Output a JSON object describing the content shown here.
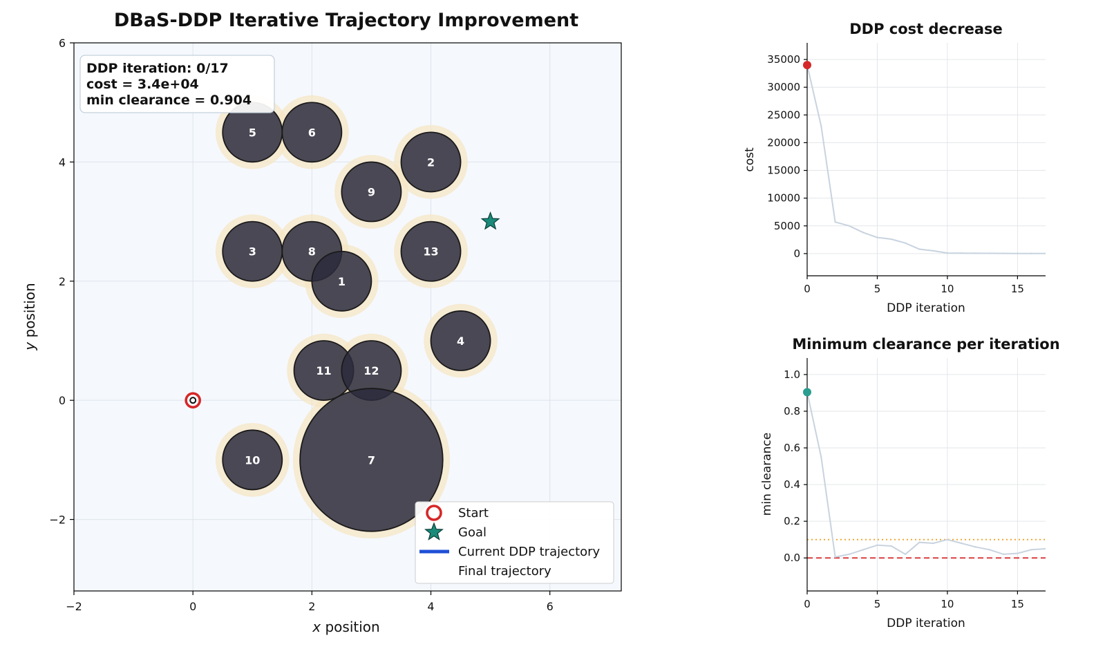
{
  "colors": {
    "obstacle_fill": "#2b2b3d",
    "obstacle_halo": "#f5e6c4",
    "plot_bg": "#f5f9fe",
    "start": "#d62728",
    "goal": "#1a8a7a",
    "trajectory": "#1f4fd6",
    "history_line": "#c8d3df",
    "cost_marker": "#d62728",
    "clearance_marker": "#2a9d8f",
    "safety_margin": "#f0a020",
    "zero_line": "#d62728"
  },
  "chart_data": [
    {
      "type": "scatter",
      "title": "DBaS-DDP Iterative Trajectory Improvement",
      "xlabel_italic": "x",
      "xlabel_rest": " position",
      "ylabel_italic": "y",
      "ylabel_rest": " position",
      "xlim": [
        -2,
        7.2
      ],
      "ylim": [
        -3.2,
        6
      ],
      "xticks": [
        -2,
        0,
        2,
        4,
        6
      ],
      "yticks": [
        -2,
        0,
        2,
        4,
        6
      ],
      "xtick_labels": [
        "−2",
        "0",
        "2",
        "4",
        "6"
      ],
      "ytick_labels": [
        "−2",
        "0",
        "2",
        "4",
        "6"
      ],
      "grid": true,
      "info_box": [
        "DDP iteration: 0/17",
        "cost = 3.4e+04",
        "min clearance = 0.904"
      ],
      "obstacles": [
        {
          "label": "5",
          "x": 1.0,
          "y": 4.5,
          "r": 0.5
        },
        {
          "label": "6",
          "x": 2.0,
          "y": 4.5,
          "r": 0.5
        },
        {
          "label": "2",
          "x": 4.0,
          "y": 4.0,
          "r": 0.5
        },
        {
          "label": "9",
          "x": 3.0,
          "y": 3.5,
          "r": 0.5
        },
        {
          "label": "3",
          "x": 1.0,
          "y": 2.5,
          "r": 0.5
        },
        {
          "label": "8",
          "x": 2.0,
          "y": 2.5,
          "r": 0.5
        },
        {
          "label": "13",
          "x": 4.0,
          "y": 2.5,
          "r": 0.5
        },
        {
          "label": "1",
          "x": 2.5,
          "y": 2.0,
          "r": 0.5
        },
        {
          "label": "4",
          "x": 4.5,
          "y": 1.0,
          "r": 0.5
        },
        {
          "label": "11",
          "x": 2.2,
          "y": 0.5,
          "r": 0.5
        },
        {
          "label": "12",
          "x": 3.0,
          "y": 0.5,
          "r": 0.5
        },
        {
          "label": "10",
          "x": 1.0,
          "y": -1.0,
          "r": 0.5
        },
        {
          "label": "7",
          "x": 3.0,
          "y": -1.0,
          "r": 1.2
        }
      ],
      "start": {
        "x": 0,
        "y": 0
      },
      "goal": {
        "x": 5,
        "y": 3
      },
      "legend": [
        "Start",
        "Goal",
        "Current DDP trajectory",
        "Final trajectory"
      ],
      "legend_position": "lower-right"
    },
    {
      "type": "line",
      "title": "DDP cost decrease",
      "xlabel": "DDP iteration",
      "ylabel": "cost",
      "xlim": [
        0,
        17
      ],
      "ylim": [
        -4000,
        38000
      ],
      "xticks": [
        0,
        5,
        10,
        15
      ],
      "yticks": [
        0,
        5000,
        10000,
        15000,
        20000,
        25000,
        30000,
        35000
      ],
      "grid": true,
      "x": [
        0,
        1,
        2,
        3,
        4,
        5,
        6,
        7,
        8,
        9,
        10,
        11,
        12,
        13,
        14,
        15,
        16,
        17
      ],
      "values": [
        34000,
        23000,
        5700,
        5000,
        3800,
        2900,
        2600,
        1900,
        800,
        500,
        100,
        80,
        60,
        50,
        40,
        30,
        25,
        20
      ],
      "current": {
        "x": 0,
        "y": 34000
      }
    },
    {
      "type": "line",
      "title": "Minimum clearance per iteration",
      "xlabel": "DDP iteration",
      "ylabel": "min clearance",
      "xlim": [
        0,
        17
      ],
      "ylim": [
        -0.18,
        1.09
      ],
      "xticks": [
        0,
        5,
        10,
        15
      ],
      "yticks": [
        0.0,
        0.2,
        0.4,
        0.6,
        0.8,
        1.0
      ],
      "grid": true,
      "x": [
        0,
        1,
        2,
        3,
        4,
        5,
        6,
        7,
        8,
        9,
        10,
        11,
        12,
        13,
        14,
        15,
        16,
        17
      ],
      "values": [
        0.904,
        0.55,
        0.005,
        0.02,
        0.045,
        0.07,
        0.065,
        0.02,
        0.085,
        0.08,
        0.1,
        0.08,
        0.06,
        0.045,
        0.02,
        0.025,
        0.045,
        0.05
      ],
      "safety_margin": 0.1,
      "zero_line": 0.0,
      "current": {
        "x": 0,
        "y": 0.904
      }
    }
  ]
}
